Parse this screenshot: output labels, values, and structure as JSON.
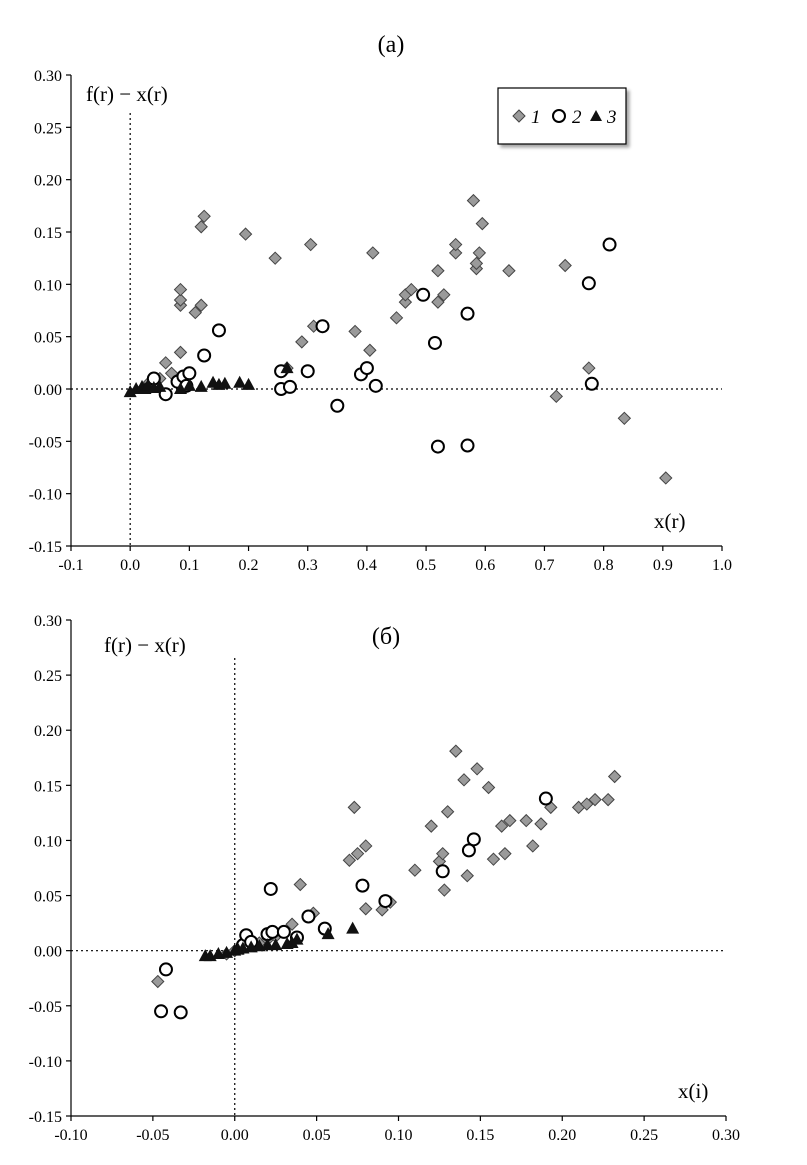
{
  "chart_data": [
    {
      "type": "scatter",
      "title": "(а)",
      "xlabel": "x(r)",
      "ylabel": "f(r) − x(r)",
      "xlim": [
        -0.1,
        1.0
      ],
      "ylim": [
        -0.15,
        0.3
      ],
      "x_ticks": [
        "-0.1",
        "0.0",
        "0.1",
        "0.2",
        "0.3",
        "0.4",
        "0.5",
        "0.6",
        "0.7",
        "0.8",
        "0.9",
        "1.0"
      ],
      "y_ticks": [
        "-0.15",
        "-0.10",
        "-0.05",
        "0.00",
        "0.05",
        "0.10",
        "0.15",
        "0.20",
        "0.25",
        "0.30"
      ],
      "grid": false,
      "legend": "top-right",
      "reference_lines": {
        "x": 0,
        "y": 0
      },
      "series": [
        {
          "name": "1",
          "marker": "diamond",
          "color": "#9a9a9a",
          "points": [
            [
              0.03,
              0.005
            ],
            [
              0.05,
              0.01
            ],
            [
              0.06,
              0.025
            ],
            [
              0.07,
              0.015
            ],
            [
              0.085,
              0.035
            ],
            [
              0.085,
              0.08
            ],
            [
              0.085,
              0.085
            ],
            [
              0.085,
              0.095
            ],
            [
              0.11,
              0.073
            ],
            [
              0.12,
              0.08
            ],
            [
              0.12,
              0.155
            ],
            [
              0.125,
              0.165
            ],
            [
              0.195,
              0.148
            ],
            [
              0.245,
              0.125
            ],
            [
              0.265,
              0.02
            ],
            [
              0.305,
              0.138
            ],
            [
              0.31,
              0.06
            ],
            [
              0.29,
              0.045
            ],
            [
              0.38,
              0.055
            ],
            [
              0.405,
              0.037
            ],
            [
              0.41,
              0.13
            ],
            [
              0.45,
              0.068
            ],
            [
              0.465,
              0.083
            ],
            [
              0.465,
              0.09
            ],
            [
              0.475,
              0.095
            ],
            [
              0.52,
              0.083
            ],
            [
              0.52,
              0.113
            ],
            [
              0.53,
              0.09
            ],
            [
              0.55,
              0.13
            ],
            [
              0.55,
              0.138
            ],
            [
              0.58,
              0.18
            ],
            [
              0.585,
              0.115
            ],
            [
              0.585,
              0.12
            ],
            [
              0.59,
              0.13
            ],
            [
              0.595,
              0.158
            ],
            [
              0.64,
              0.113
            ],
            [
              0.72,
              -0.007
            ],
            [
              0.735,
              0.118
            ],
            [
              0.775,
              0.02
            ],
            [
              0.835,
              -0.028
            ],
            [
              0.905,
              -0.085
            ]
          ]
        },
        {
          "name": "2",
          "marker": "circle",
          "color": "#ffffff",
          "points": [
            [
              0.04,
              0.01
            ],
            [
              0.06,
              -0.005
            ],
            [
              0.08,
              0.007
            ],
            [
              0.09,
              0.012
            ],
            [
              0.095,
              0.003
            ],
            [
              0.1,
              0.015
            ],
            [
              0.125,
              0.032
            ],
            [
              0.15,
              0.056
            ],
            [
              0.255,
              0.017
            ],
            [
              0.255,
              0.0
            ],
            [
              0.27,
              0.002
            ],
            [
              0.3,
              0.017
            ],
            [
              0.325,
              0.06
            ],
            [
              0.35,
              -0.016
            ],
            [
              0.39,
              0.014
            ],
            [
              0.4,
              0.02
            ],
            [
              0.415,
              0.003
            ],
            [
              0.495,
              0.09
            ],
            [
              0.515,
              0.044
            ],
            [
              0.52,
              -0.055
            ],
            [
              0.57,
              0.072
            ],
            [
              0.57,
              -0.054
            ],
            [
              0.775,
              0.101
            ],
            [
              0.78,
              0.005
            ],
            [
              0.81,
              0.138
            ]
          ]
        },
        {
          "name": "3",
          "marker": "triangle",
          "color": "#111111",
          "points": [
            [
              0.0,
              -0.003
            ],
            [
              0.01,
              0.0
            ],
            [
              0.02,
              0.002
            ],
            [
              0.025,
              0.0
            ],
            [
              0.03,
              0.003
            ],
            [
              0.04,
              0.001
            ],
            [
              0.05,
              0.002
            ],
            [
              0.085,
              0.0
            ],
            [
              0.1,
              0.003
            ],
            [
              0.12,
              0.002
            ],
            [
              0.14,
              0.006
            ],
            [
              0.15,
              0.004
            ],
            [
              0.16,
              0.005
            ],
            [
              0.185,
              0.006
            ],
            [
              0.2,
              0.004
            ],
            [
              0.265,
              0.02
            ]
          ]
        }
      ]
    },
    {
      "type": "scatter",
      "title": "(б)",
      "xlabel": "x(i)",
      "ylabel": "f(r) − x(r)",
      "xlim": [
        -0.1,
        0.3
      ],
      "ylim": [
        -0.15,
        0.3
      ],
      "x_ticks": [
        "-0.10",
        "-0.05",
        "0.00",
        "0.05",
        "0.10",
        "0.15",
        "0.20",
        "0.25",
        "0.30"
      ],
      "y_ticks": [
        "-0.15",
        "-0.10",
        "-0.05",
        "0.00",
        "0.05",
        "0.10",
        "0.15",
        "0.20",
        "0.25",
        "0.30"
      ],
      "grid": false,
      "legend": "none",
      "reference_lines": {
        "x": 0,
        "y": 0
      },
      "series": [
        {
          "name": "1",
          "marker": "diamond",
          "color": "#9a9a9a",
          "points": [
            [
              -0.047,
              -0.028
            ],
            [
              -0.005,
              -0.003
            ],
            [
              0.0,
              0.0
            ],
            [
              0.005,
              0.002
            ],
            [
              0.01,
              0.005
            ],
            [
              0.015,
              0.007
            ],
            [
              0.02,
              0.01
            ],
            [
              0.025,
              0.013
            ],
            [
              0.03,
              0.017
            ],
            [
              0.035,
              0.024
            ],
            [
              0.04,
              0.06
            ],
            [
              0.048,
              0.034
            ],
            [
              0.07,
              0.082
            ],
            [
              0.073,
              0.13
            ],
            [
              0.075,
              0.088
            ],
            [
              0.08,
              0.038
            ],
            [
              0.08,
              0.095
            ],
            [
              0.09,
              0.037
            ],
            [
              0.095,
              0.044
            ],
            [
              0.11,
              0.073
            ],
            [
              0.12,
              0.113
            ],
            [
              0.125,
              0.081
            ],
            [
              0.127,
              0.088
            ],
            [
              0.128,
              0.055
            ],
            [
              0.13,
              0.126
            ],
            [
              0.135,
              0.181
            ],
            [
              0.14,
              0.155
            ],
            [
              0.142,
              0.068
            ],
            [
              0.148,
              0.165
            ],
            [
              0.155,
              0.148
            ],
            [
              0.158,
              0.083
            ],
            [
              0.163,
              0.113
            ],
            [
              0.165,
              0.088
            ],
            [
              0.168,
              0.118
            ],
            [
              0.178,
              0.118
            ],
            [
              0.182,
              0.095
            ],
            [
              0.187,
              0.115
            ],
            [
              0.193,
              0.13
            ],
            [
              0.21,
              0.13
            ],
            [
              0.215,
              0.133
            ],
            [
              0.22,
              0.137
            ],
            [
              0.228,
              0.137
            ],
            [
              0.232,
              0.158
            ]
          ]
        },
        {
          "name": "2",
          "marker": "circle",
          "color": "#ffffff",
          "points": [
            [
              -0.045,
              -0.055
            ],
            [
              -0.042,
              -0.017
            ],
            [
              -0.033,
              -0.056
            ],
            [
              0.005,
              0.005
            ],
            [
              0.007,
              0.014
            ],
            [
              0.01,
              0.008
            ],
            [
              0.02,
              0.015
            ],
            [
              0.022,
              0.056
            ],
            [
              0.023,
              0.017
            ],
            [
              0.03,
              0.017
            ],
            [
              0.038,
              0.012
            ],
            [
              0.045,
              0.031
            ],
            [
              0.055,
              0.02
            ],
            [
              0.078,
              0.059
            ],
            [
              0.092,
              0.045
            ],
            [
              0.127,
              0.072
            ],
            [
              0.143,
              0.091
            ],
            [
              0.146,
              0.101
            ],
            [
              0.19,
              0.138
            ]
          ]
        },
        {
          "name": "3",
          "marker": "triangle",
          "color": "#111111",
          "points": [
            [
              -0.018,
              -0.005
            ],
            [
              -0.015,
              -0.005
            ],
            [
              -0.01,
              -0.003
            ],
            [
              -0.005,
              -0.002
            ],
            [
              0.0,
              0.0
            ],
            [
              0.002,
              0.001
            ],
            [
              0.005,
              0.002
            ],
            [
              0.01,
              0.003
            ],
            [
              0.015,
              0.004
            ],
            [
              0.02,
              0.005
            ],
            [
              0.025,
              0.005
            ],
            [
              0.032,
              0.006
            ],
            [
              0.035,
              0.007
            ],
            [
              0.038,
              0.01
            ],
            [
              0.057,
              0.015
            ],
            [
              0.072,
              0.02
            ]
          ]
        }
      ]
    }
  ]
}
